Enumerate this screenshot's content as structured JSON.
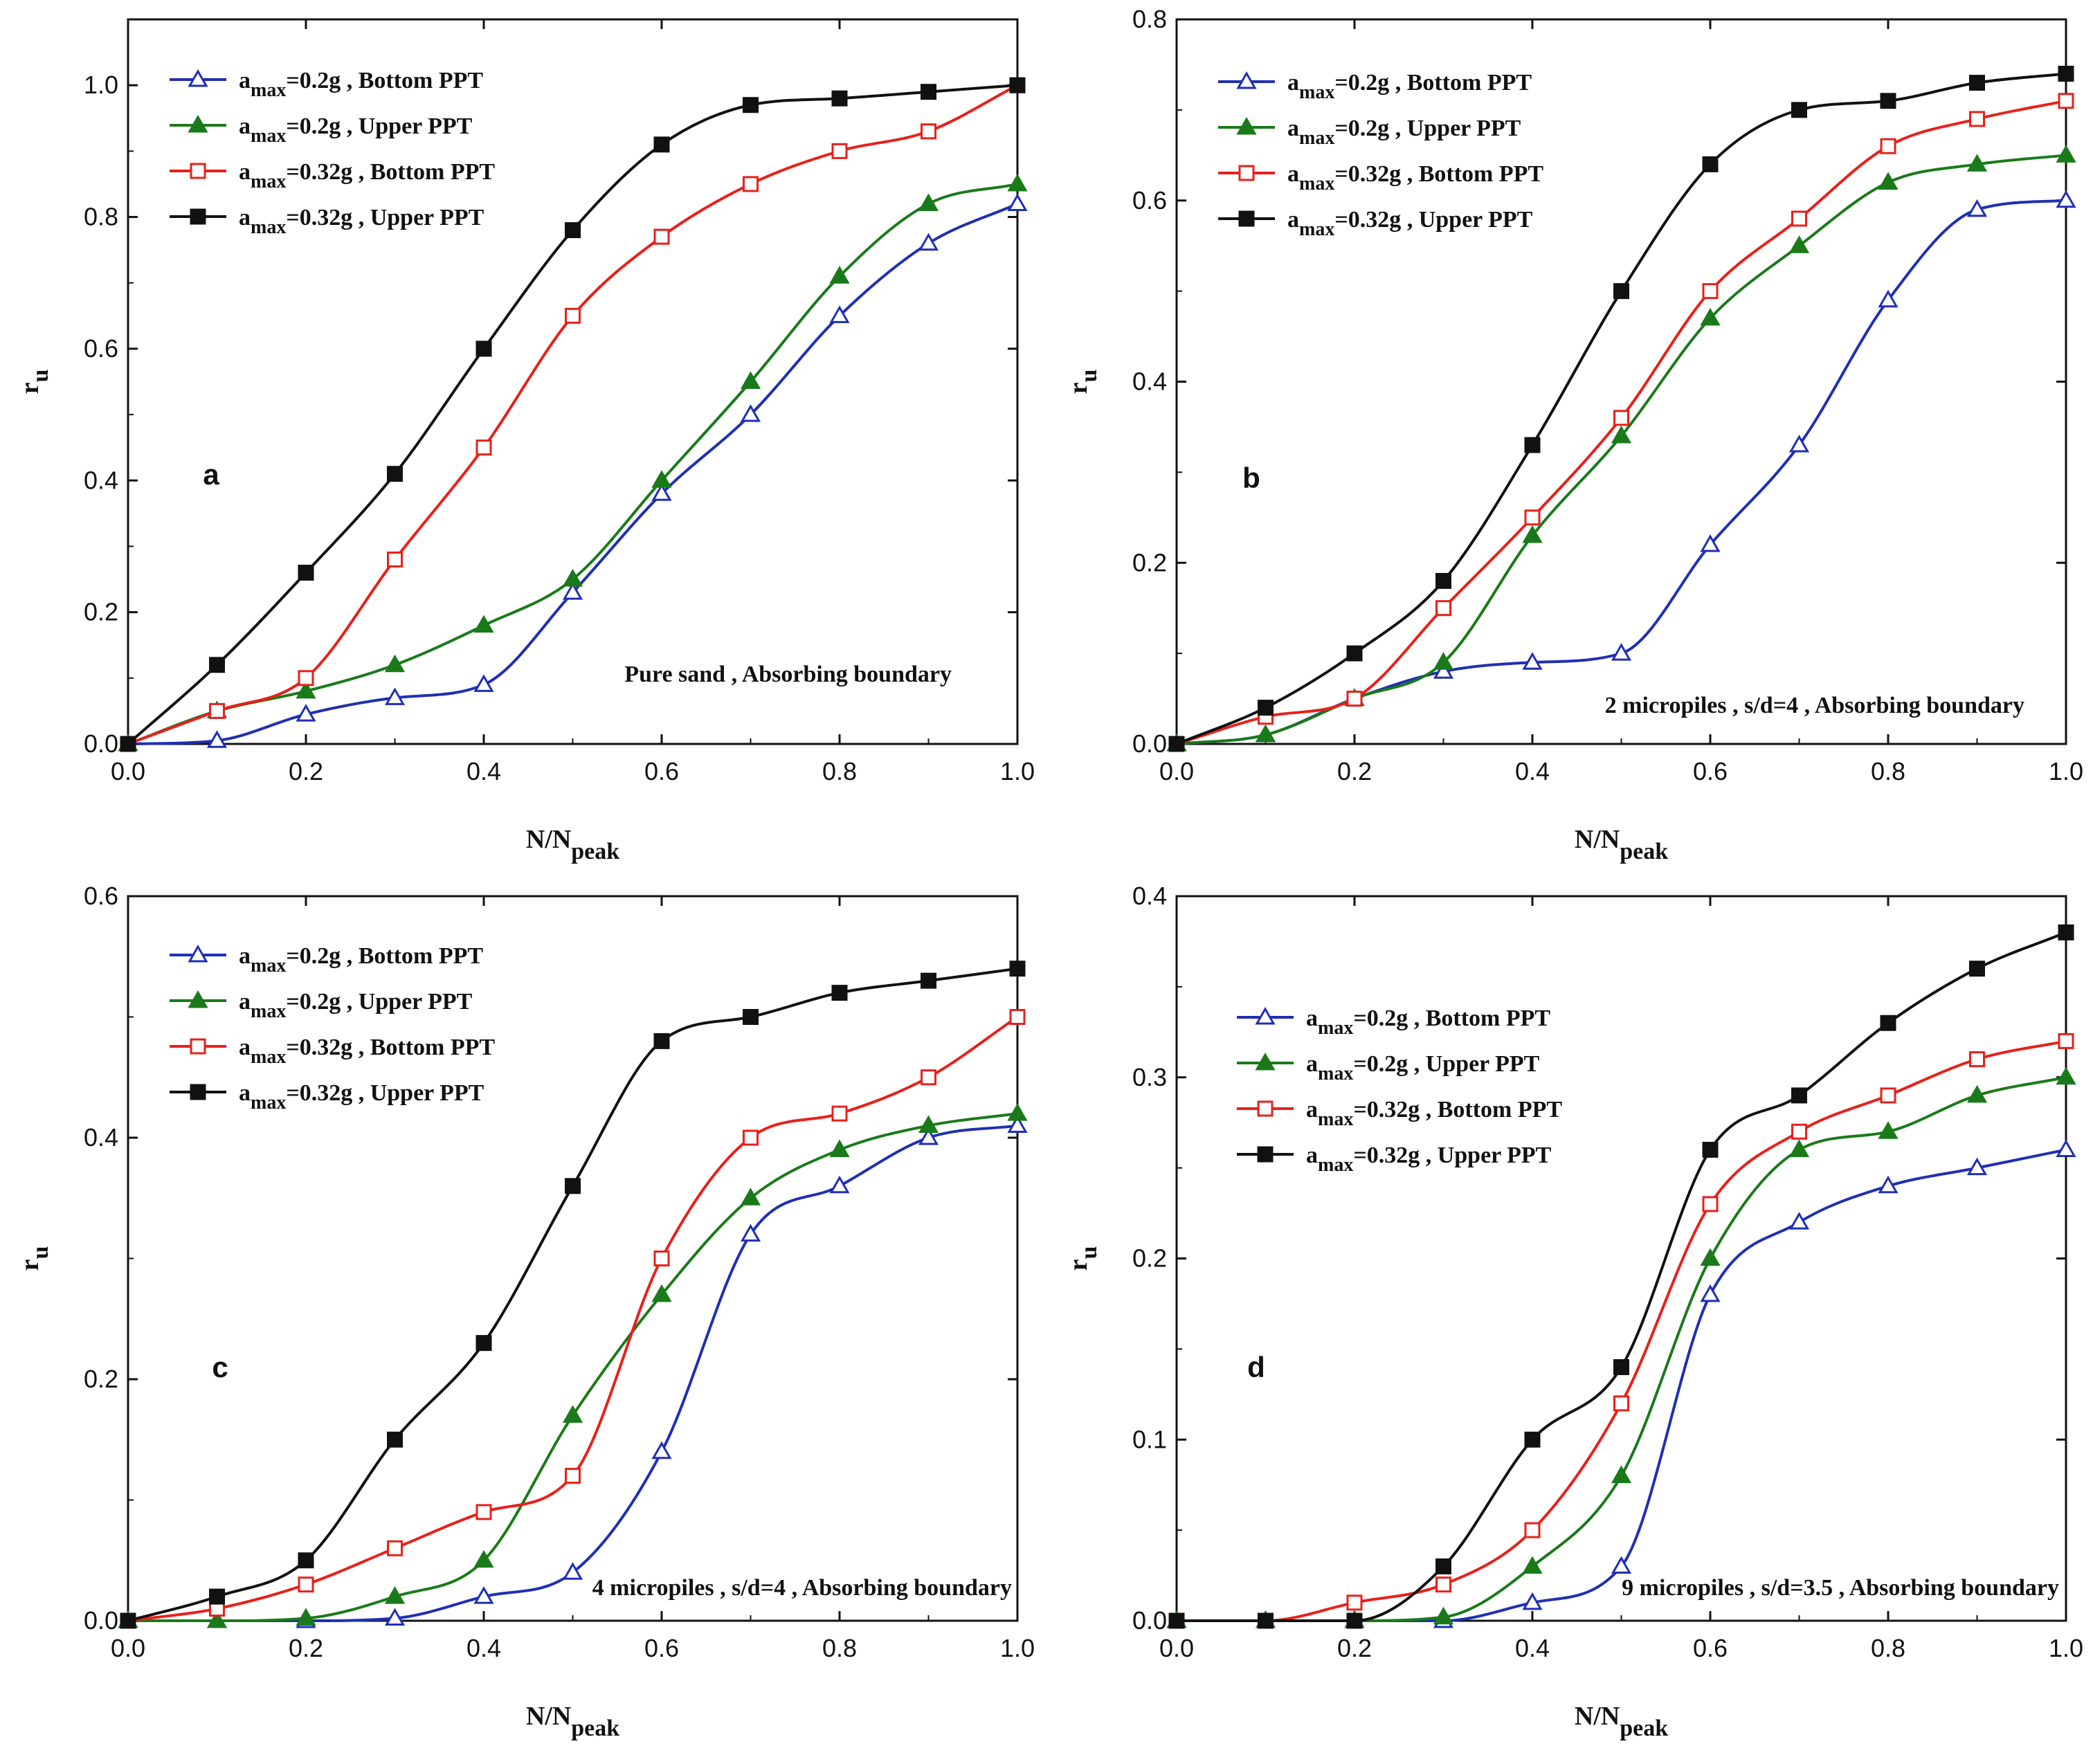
{
  "figure": {
    "legend_template": [
      {
        "prefix": "a",
        "subscript": "max",
        "value": "=0.2g",
        "suffix": " , Bottom PPT",
        "color": "#1f2fb4",
        "marker": "triangle-open"
      },
      {
        "prefix": "a",
        "subscript": "max",
        "value": "=0.2g",
        "suffix": " , Upper PPT",
        "color": "#1a7a1a",
        "marker": "triangle-filled"
      },
      {
        "prefix": "a",
        "subscript": "max",
        "value": "=0.32g",
        "suffix": " , Bottom PPT",
        "color": "#e8201a",
        "marker": "square-open"
      },
      {
        "prefix": "a",
        "subscript": "max",
        "value": "=0.32g",
        "suffix": " , Upper PPT",
        "color": "#111111",
        "marker": "square-filled"
      }
    ]
  },
  "chart_data": [
    {
      "type": "line",
      "panel": "a",
      "annotation": "Pure sand , Absorbing boundary",
      "xlabel": {
        "main": "N/N",
        "sub": "peak"
      },
      "ylabel": {
        "main": "r",
        "sub": "u"
      },
      "xlim": [
        0,
        1.0
      ],
      "ylim": [
        0,
        1.1
      ],
      "xticks": [
        0.0,
        0.2,
        0.4,
        0.6,
        0.8,
        1.0
      ],
      "xtick_labels": [
        "0.0",
        "0.2",
        "0.4",
        "0.6",
        "0.8",
        "1.0"
      ],
      "yticks": [
        0.0,
        0.2,
        0.4,
        0.6,
        0.8,
        1.0
      ],
      "ytick_labels": [
        "0.0",
        "0.2",
        "0.4",
        "0.6",
        "0.8",
        "1.0"
      ],
      "x": [
        0,
        0.1,
        0.2,
        0.3,
        0.4,
        0.5,
        0.6,
        0.7,
        0.8,
        0.9,
        1.0
      ],
      "series": [
        {
          "name": "amax=0.2g , Bottom PPT",
          "values": [
            0,
            0.005,
            0.045,
            0.07,
            0.09,
            0.23,
            0.38,
            0.5,
            0.65,
            0.76,
            0.82
          ]
        },
        {
          "name": "amax=0.2g , Upper PPT",
          "values": [
            0,
            0.05,
            0.08,
            0.12,
            0.18,
            0.25,
            0.4,
            0.55,
            0.71,
            0.82,
            0.85
          ]
        },
        {
          "name": "amax=0.32g , Bottom PPT",
          "values": [
            0,
            0.05,
            0.1,
            0.28,
            0.45,
            0.65,
            0.77,
            0.85,
            0.9,
            0.93,
            1.0
          ]
        },
        {
          "name": "amax=0.32g , Upper PPT",
          "values": [
            0,
            0.12,
            0.26,
            0.41,
            0.6,
            0.78,
            0.91,
            0.97,
            0.98,
            0.99,
            1.0
          ]
        }
      ]
    },
    {
      "type": "line",
      "panel": "b",
      "annotation": "2 micropiles , s/d=4 , Absorbing boundary",
      "xlabel": {
        "main": "N/N",
        "sub": "peak"
      },
      "ylabel": {
        "main": "r",
        "sub": "u"
      },
      "xlim": [
        0,
        1.0
      ],
      "ylim": [
        0,
        0.8
      ],
      "xticks": [
        0.0,
        0.2,
        0.4,
        0.6,
        0.8,
        1.0
      ],
      "xtick_labels": [
        "0.0",
        "0.2",
        "0.4",
        "0.6",
        "0.8",
        "1.0"
      ],
      "yticks": [
        0.0,
        0.2,
        0.4,
        0.6,
        0.8
      ],
      "ytick_labels": [
        "0.0",
        "0.2",
        "0.4",
        "0.6",
        "0.8"
      ],
      "x": [
        0,
        0.1,
        0.2,
        0.3,
        0.4,
        0.5,
        0.6,
        0.7,
        0.8,
        0.9,
        1.0
      ],
      "series": [
        {
          "name": "amax=0.2g , Bottom PPT",
          "values": [
            0,
            0.01,
            0.05,
            0.08,
            0.09,
            0.1,
            0.22,
            0.33,
            0.49,
            0.59,
            0.6
          ]
        },
        {
          "name": "amax=0.2g , Upper PPT",
          "values": [
            0,
            0.01,
            0.05,
            0.09,
            0.23,
            0.34,
            0.47,
            0.55,
            0.62,
            0.64,
            0.65
          ]
        },
        {
          "name": "amax=0.32g , Bottom PPT",
          "values": [
            0,
            0.03,
            0.05,
            0.15,
            0.25,
            0.36,
            0.5,
            0.58,
            0.66,
            0.69,
            0.71
          ]
        },
        {
          "name": "amax=0.32g , Upper PPT",
          "values": [
            0,
            0.04,
            0.1,
            0.18,
            0.33,
            0.5,
            0.64,
            0.7,
            0.71,
            0.73,
            0.74
          ]
        }
      ]
    },
    {
      "type": "line",
      "panel": "c",
      "annotation": "4 micropiles , s/d=4 , Absorbing boundary",
      "xlabel": {
        "main": "N/N",
        "sub": "peak"
      },
      "ylabel": {
        "main": "r",
        "sub": "u"
      },
      "xlim": [
        0,
        1.0
      ],
      "ylim": [
        0,
        0.6
      ],
      "xticks": [
        0.0,
        0.2,
        0.4,
        0.6,
        0.8,
        1.0
      ],
      "xtick_labels": [
        "0.0",
        "0.2",
        "0.4",
        "0.6",
        "0.8",
        "1.0"
      ],
      "yticks": [
        0.0,
        0.2,
        0.4,
        0.6
      ],
      "ytick_labels": [
        "0.0",
        "0.2",
        "0.4",
        "0.6"
      ],
      "x": [
        0,
        0.1,
        0.2,
        0.3,
        0.4,
        0.5,
        0.6,
        0.7,
        0.8,
        0.9,
        1.0
      ],
      "series": [
        {
          "name": "amax=0.2g , Bottom PPT",
          "values": [
            0,
            0.0,
            0.0,
            0.002,
            0.02,
            0.04,
            0.14,
            0.32,
            0.36,
            0.4,
            0.41
          ]
        },
        {
          "name": "amax=0.2g , Upper PPT",
          "values": [
            0,
            0.0,
            0.002,
            0.02,
            0.05,
            0.17,
            0.27,
            0.35,
            0.39,
            0.41,
            0.42
          ]
        },
        {
          "name": "amax=0.32g , Bottom PPT",
          "values": [
            0,
            0.01,
            0.03,
            0.06,
            0.09,
            0.12,
            0.3,
            0.4,
            0.42,
            0.45,
            0.5
          ]
        },
        {
          "name": "amax=0.32g , Upper PPT",
          "values": [
            0,
            0.02,
            0.05,
            0.15,
            0.23,
            0.36,
            0.48,
            0.5,
            0.52,
            0.53,
            0.54
          ]
        }
      ]
    },
    {
      "type": "line",
      "panel": "d",
      "annotation": "9 micropiles , s/d=3.5 , Absorbing boundary",
      "xlabel": {
        "main": "N/N",
        "sub": "peak"
      },
      "ylabel": {
        "main": "r",
        "sub": "u"
      },
      "xlim": [
        0,
        1.0
      ],
      "ylim": [
        0,
        0.4
      ],
      "xticks": [
        0.0,
        0.2,
        0.4,
        0.6,
        0.8,
        1.0
      ],
      "xtick_labels": [
        "0.0",
        "0.2",
        "0.4",
        "0.6",
        "0.8",
        "1.0"
      ],
      "yticks": [
        0.0,
        0.1,
        0.2,
        0.3,
        0.4
      ],
      "ytick_labels": [
        "0.0",
        "0.1",
        "0.2",
        "0.3",
        "0.4"
      ],
      "x": [
        0,
        0.1,
        0.2,
        0.3,
        0.4,
        0.5,
        0.6,
        0.7,
        0.8,
        0.9,
        1.0
      ],
      "series": [
        {
          "name": "amax=0.2g , Bottom PPT",
          "values": [
            0,
            0.0,
            0.0,
            0.0,
            0.01,
            0.03,
            0.18,
            0.22,
            0.24,
            0.25,
            0.26
          ]
        },
        {
          "name": "amax=0.2g , Upper PPT",
          "values": [
            0,
            0.0,
            0.0,
            0.002,
            0.03,
            0.08,
            0.2,
            0.26,
            0.27,
            0.29,
            0.3
          ]
        },
        {
          "name": "amax=0.32g , Bottom PPT",
          "values": [
            0,
            0.0,
            0.01,
            0.02,
            0.05,
            0.12,
            0.23,
            0.27,
            0.29,
            0.31,
            0.32
          ]
        },
        {
          "name": "amax=0.32g , Upper PPT",
          "values": [
            0,
            0.0,
            0.0,
            0.03,
            0.1,
            0.14,
            0.26,
            0.29,
            0.33,
            0.36,
            0.38
          ]
        }
      ]
    }
  ]
}
